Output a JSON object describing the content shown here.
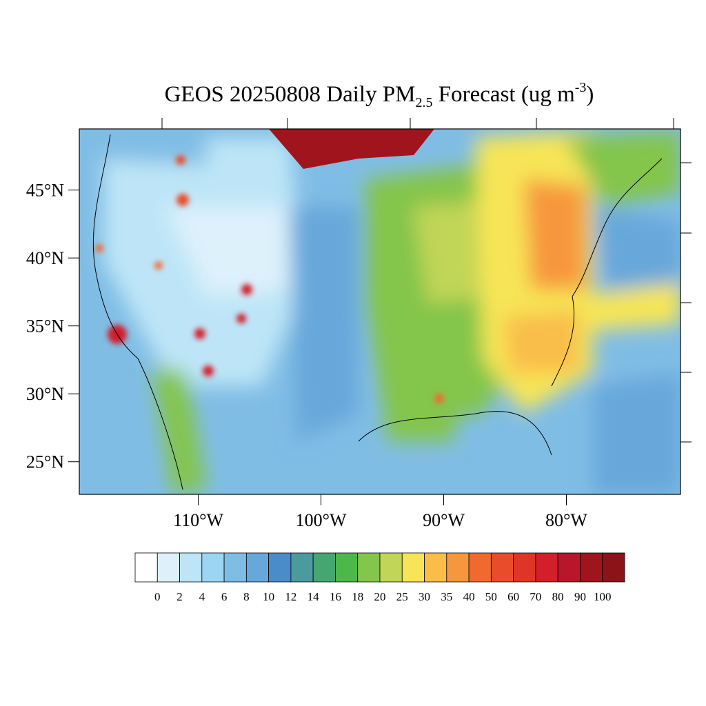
{
  "chart_data": {
    "type": "map",
    "title": {
      "main": "GEOS 20250808 Daily PM",
      "sub": "2.5",
      "mid": " Forecast (ug m",
      "sup": "-3",
      "end": ")"
    },
    "xlim": [
      -119.7,
      -70.7
    ],
    "ylim": [
      22.6,
      49.5
    ],
    "xticks": [
      {
        "value": -110,
        "label": "110°W"
      },
      {
        "value": -100,
        "label": "100°W"
      },
      {
        "value": -90,
        "label": "90°W"
      },
      {
        "value": -80,
        "label": "80°W"
      }
    ],
    "yticks": [
      {
        "value": 45,
        "label": "45°N"
      },
      {
        "value": 40,
        "label": "40°N"
      },
      {
        "value": 35,
        "label": "35°N"
      },
      {
        "value": 30,
        "label": "30°N"
      },
      {
        "value": 25,
        "label": "25°N"
      }
    ],
    "colorbar": {
      "levels": [
        0,
        2,
        4,
        6,
        8,
        10,
        12,
        14,
        16,
        18,
        20,
        25,
        30,
        35,
        40,
        50,
        60,
        70,
        80,
        90,
        100
      ],
      "colors": [
        "#ffffff",
        "#ddf1fb",
        "#bde5f7",
        "#9bd5f3",
        "#80bde5",
        "#67a7da",
        "#4a8bc9",
        "#4b9a9e",
        "#46a672",
        "#4db74a",
        "#84c54c",
        "#c1d557",
        "#f7e557",
        "#f9bd48",
        "#f7973d",
        "#f06a30",
        "#e84c2b",
        "#df3527",
        "#d21f2a",
        "#b8162a",
        "#a0151d",
        "#8c1418"
      ]
    }
  }
}
